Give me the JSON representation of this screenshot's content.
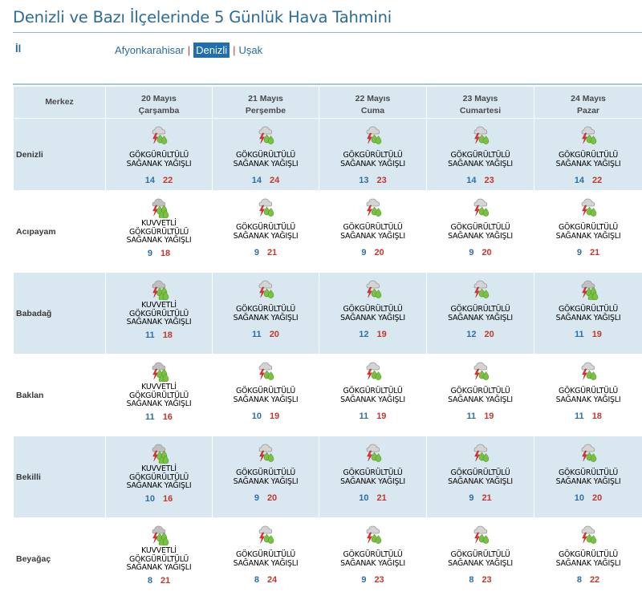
{
  "title": "Denizli ve Bazı İlçelerinde 5 Günlük Hava Tahmini",
  "il_label": "İl",
  "provinces": [
    {
      "label": "Afyonkarahisar",
      "active": false
    },
    {
      "label": "Denizli",
      "active": true
    },
    {
      "label": "Uşak",
      "active": false
    }
  ],
  "header": {
    "merkez": "Merkez",
    "days": [
      {
        "date": "20 Mayıs",
        "weekday": "Çarşamba"
      },
      {
        "date": "21 Mayıs",
        "weekday": "Perşembe"
      },
      {
        "date": "22 Mayıs",
        "weekday": "Cuma"
      },
      {
        "date": "23 Mayıs",
        "weekday": "Cumartesi"
      },
      {
        "date": "24 Mayıs",
        "weekday": "Pazar"
      }
    ]
  },
  "rows": [
    {
      "city": "Denizli",
      "shaded": true,
      "days": [
        {
          "icon": "thunder-shower-icon",
          "cond": [
            "GÖKGÜRÜLTÜLÜ",
            "SAĞANAK YAĞIŞLI"
          ],
          "min": "14",
          "max": "22"
        },
        {
          "icon": "thunder-shower-icon",
          "cond": [
            "GÖKGÜRÜLTÜLÜ",
            "SAĞANAK YAĞIŞLI"
          ],
          "min": "14",
          "max": "24"
        },
        {
          "icon": "thunder-shower-icon",
          "cond": [
            "GÖKGÜRÜLTÜLÜ",
            "SAĞANAK YAĞIŞLI"
          ],
          "min": "13",
          "max": "23"
        },
        {
          "icon": "thunder-shower-icon",
          "cond": [
            "GÖKGÜRÜLTÜLÜ",
            "SAĞANAK YAĞIŞLI"
          ],
          "min": "14",
          "max": "23"
        },
        {
          "icon": "thunder-shower-icon",
          "cond": [
            "GÖKGÜRÜLTÜLÜ",
            "SAĞANAK YAĞIŞLI"
          ],
          "min": "14",
          "max": "22"
        }
      ]
    },
    {
      "city": "Acıpayam",
      "shaded": false,
      "days": [
        {
          "icon": "heavy-thunder-shower-icon",
          "cond": [
            "KUVVETLİ",
            "GÖKGÜRÜLTÜLÜ",
            "SAĞANAK YAĞIŞLI"
          ],
          "min": "9",
          "max": "18"
        },
        {
          "icon": "thunder-shower-icon",
          "cond": [
            "GÖKGÜRÜLTÜLÜ",
            "SAĞANAK YAĞIŞLI"
          ],
          "min": "9",
          "max": "21"
        },
        {
          "icon": "thunder-shower-icon",
          "cond": [
            "GÖKGÜRÜLTÜLÜ",
            "SAĞANAK YAĞIŞLI"
          ],
          "min": "9",
          "max": "20"
        },
        {
          "icon": "thunder-shower-icon",
          "cond": [
            "GÖKGÜRÜLTÜLÜ",
            "SAĞANAK YAĞIŞLI"
          ],
          "min": "9",
          "max": "20"
        },
        {
          "icon": "thunder-shower-icon",
          "cond": [
            "GÖKGÜRÜLTÜLÜ",
            "SAĞANAK YAĞIŞLI"
          ],
          "min": "9",
          "max": "21"
        }
      ]
    },
    {
      "city": "Babadağ",
      "shaded": true,
      "days": [
        {
          "icon": "heavy-thunder-shower-icon",
          "cond": [
            "KUVVETLİ",
            "GÖKGÜRÜLTÜLÜ",
            "SAĞANAK YAĞIŞLI"
          ],
          "min": "11",
          "max": "18"
        },
        {
          "icon": "thunder-shower-icon",
          "cond": [
            "GÖKGÜRÜLTÜLÜ",
            "SAĞANAK YAĞIŞLI"
          ],
          "min": "11",
          "max": "20"
        },
        {
          "icon": "thunder-shower-icon",
          "cond": [
            "GÖKGÜRÜLTÜLÜ",
            "SAĞANAK YAĞIŞLI"
          ],
          "min": "12",
          "max": "19"
        },
        {
          "icon": "thunder-shower-icon",
          "cond": [
            "GÖKGÜRÜLTÜLÜ",
            "SAĞANAK YAĞIŞLI"
          ],
          "min": "12",
          "max": "20"
        },
        {
          "icon": "heavy-thunder-shower-icon",
          "cond": [
            "GÖKGÜRÜLTÜLÜ",
            "SAĞANAK YAĞIŞLI"
          ],
          "min": "11",
          "max": "19"
        }
      ]
    },
    {
      "city": "Baklan",
      "shaded": false,
      "days": [
        {
          "icon": "heavy-thunder-shower-icon",
          "cond": [
            "KUVVETLİ",
            "GÖKGÜRÜLTÜLÜ",
            "SAĞANAK YAĞIŞLI"
          ],
          "min": "11",
          "max": "16"
        },
        {
          "icon": "thunder-shower-icon",
          "cond": [
            "GÖKGÜRÜLTÜLÜ",
            "SAĞANAK YAĞIŞLI"
          ],
          "min": "10",
          "max": "19"
        },
        {
          "icon": "thunder-shower-icon",
          "cond": [
            "GÖKGÜRÜLTÜLÜ",
            "SAĞANAK YAĞIŞLI"
          ],
          "min": "11",
          "max": "19"
        },
        {
          "icon": "thunder-shower-icon",
          "cond": [
            "GÖKGÜRÜLTÜLÜ",
            "SAĞANAK YAĞIŞLI"
          ],
          "min": "11",
          "max": "19"
        },
        {
          "icon": "thunder-shower-icon",
          "cond": [
            "GÖKGÜRÜLTÜLÜ",
            "SAĞANAK YAĞIŞLI"
          ],
          "min": "11",
          "max": "18"
        }
      ]
    },
    {
      "city": "Bekilli",
      "shaded": true,
      "days": [
        {
          "icon": "heavy-thunder-shower-icon",
          "cond": [
            "KUVVETLİ",
            "GÖKGÜRÜLTÜLÜ",
            "SAĞANAK YAĞIŞLI"
          ],
          "min": "10",
          "max": "16"
        },
        {
          "icon": "thunder-shower-icon",
          "cond": [
            "GÖKGÜRÜLTÜLÜ",
            "SAĞANAK YAĞIŞLI"
          ],
          "min": "9",
          "max": "20"
        },
        {
          "icon": "thunder-shower-icon",
          "cond": [
            "GÖKGÜRÜLTÜLÜ",
            "SAĞANAK YAĞIŞLI"
          ],
          "min": "10",
          "max": "21"
        },
        {
          "icon": "thunder-shower-icon",
          "cond": [
            "GÖKGÜRÜLTÜLÜ",
            "SAĞANAK YAĞIŞLI"
          ],
          "min": "9",
          "max": "21"
        },
        {
          "icon": "thunder-shower-icon",
          "cond": [
            "GÖKGÜRÜLTÜLÜ",
            "SAĞANAK YAĞIŞLI"
          ],
          "min": "10",
          "max": "20"
        }
      ]
    },
    {
      "city": "Beyağaç",
      "shaded": false,
      "days": [
        {
          "icon": "heavy-thunder-shower-icon",
          "cond": [
            "KUVVETLİ",
            "GÖKGÜRÜLTÜLÜ",
            "SAĞANAK YAĞIŞLI"
          ],
          "min": "8",
          "max": "21"
        },
        {
          "icon": "thunder-shower-icon",
          "cond": [
            "GÖKGÜRÜLTÜLÜ",
            "SAĞANAK YAĞIŞLI"
          ],
          "min": "8",
          "max": "24"
        },
        {
          "icon": "thunder-shower-icon",
          "cond": [
            "GÖKGÜRÜLTÜLÜ",
            "SAĞANAK YAĞIŞLI"
          ],
          "min": "9",
          "max": "23"
        },
        {
          "icon": "thunder-shower-icon",
          "cond": [
            "GÖKGÜRÜLTÜLÜ",
            "SAĞANAK YAĞIŞLI"
          ],
          "min": "8",
          "max": "23"
        },
        {
          "icon": "thunder-shower-icon",
          "cond": [
            "GÖKGÜRÜLTÜLÜ",
            "SAĞANAK YAĞIŞLI"
          ],
          "min": "8",
          "max": "22"
        }
      ]
    }
  ],
  "colors": {
    "accent": "#2a6b99",
    "shade": "#d9e7f0",
    "min_temp": "#2d6fa8",
    "max_temp": "#c0392b"
  }
}
